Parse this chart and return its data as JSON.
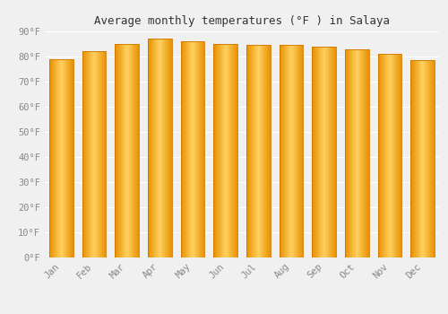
{
  "title": "Average monthly temperatures (°F ) in Salaya",
  "months": [
    "Jan",
    "Feb",
    "Mar",
    "Apr",
    "May",
    "Jun",
    "Jul",
    "Aug",
    "Sep",
    "Oct",
    "Nov",
    "Dec"
  ],
  "values": [
    79.0,
    82.0,
    85.0,
    87.0,
    86.0,
    85.0,
    84.5,
    84.5,
    84.0,
    83.0,
    81.0,
    78.5
  ],
  "ylim": [
    0,
    90
  ],
  "yticks": [
    0,
    10,
    20,
    30,
    40,
    50,
    60,
    70,
    80,
    90
  ],
  "ytick_labels": [
    "0°F",
    "10°F",
    "20°F",
    "30°F",
    "40°F",
    "50°F",
    "60°F",
    "70°F",
    "80°F",
    "90°F"
  ],
  "background_color": "#f0f0f0",
  "grid_color": "#ffffff",
  "title_fontsize": 9,
  "tick_fontsize": 7.5,
  "bar_color_center": "#FFD060",
  "bar_color_edge": "#E89000",
  "bar_edge_outline": "#CC7700"
}
